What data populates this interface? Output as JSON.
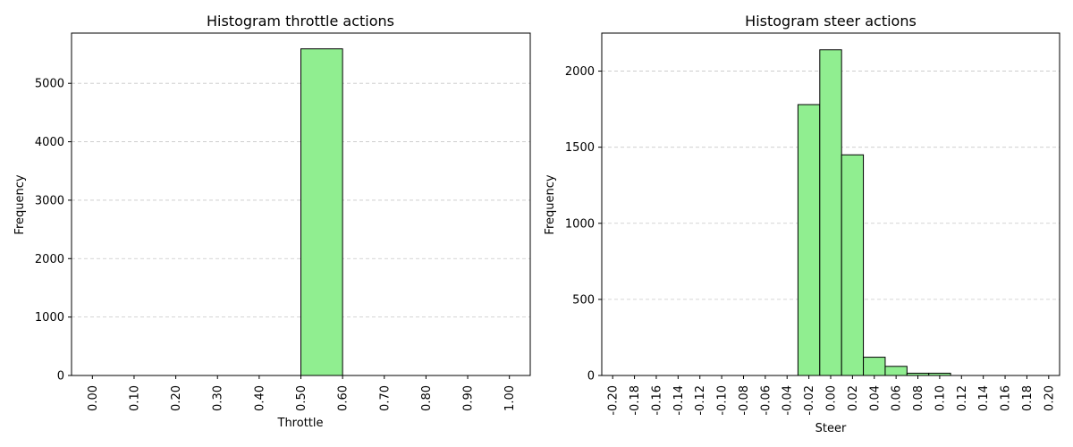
{
  "chart_data": [
    {
      "type": "bar",
      "title": "Histogram throttle actions",
      "xlabel": "Throttle",
      "ylabel": "Frequency",
      "xlim": [
        -0.05,
        1.05
      ],
      "ylim": [
        0,
        5860
      ],
      "xticks": [
        "0.00",
        "0.10",
        "0.20",
        "0.30",
        "0.40",
        "0.50",
        "0.60",
        "0.70",
        "0.80",
        "0.90",
        "1.00"
      ],
      "yticks": [
        "0",
        "1000",
        "2000",
        "3000",
        "4000",
        "5000"
      ],
      "bin_edges": [
        0.0,
        0.1,
        0.2,
        0.3,
        0.4,
        0.5,
        0.6,
        0.7,
        0.8,
        0.9,
        1.0
      ],
      "values": [
        0,
        0,
        0,
        0,
        0,
        5590,
        0,
        0,
        0,
        0
      ],
      "grid": "y-dashed",
      "bar_color": "#90ee90",
      "edge_color": "#000000"
    },
    {
      "type": "bar",
      "title": "Histogram steer actions",
      "xlabel": "Steer",
      "ylabel": "Frequency",
      "xlim": [
        -0.21,
        0.21
      ],
      "ylim": [
        0,
        2250
      ],
      "xticks": [
        "-0.20",
        "-0.18",
        "-0.16",
        "-0.14",
        "-0.12",
        "-0.10",
        "-0.08",
        "-0.06",
        "-0.04",
        "-0.02",
        "0.00",
        "0.02",
        "0.04",
        "0.06",
        "0.08",
        "0.10",
        "0.12",
        "0.14",
        "0.16",
        "0.18",
        "0.20"
      ],
      "yticks": [
        "0",
        "500",
        "1000",
        "1500",
        "2000"
      ],
      "bin_edges": [
        -0.19,
        -0.17,
        -0.15,
        -0.13,
        -0.11,
        -0.09,
        -0.07,
        -0.05,
        -0.03,
        -0.01,
        0.01,
        0.03,
        0.05,
        0.07,
        0.09,
        0.11,
        0.13,
        0.15,
        0.17,
        0.19
      ],
      "values": [
        0,
        0,
        0,
        0,
        0,
        0,
        0,
        0,
        1780,
        2140,
        1450,
        120,
        60,
        15,
        15,
        0,
        0,
        0,
        0
      ],
      "grid": "y-dashed",
      "bar_color": "#90ee90",
      "edge_color": "#000000"
    }
  ]
}
